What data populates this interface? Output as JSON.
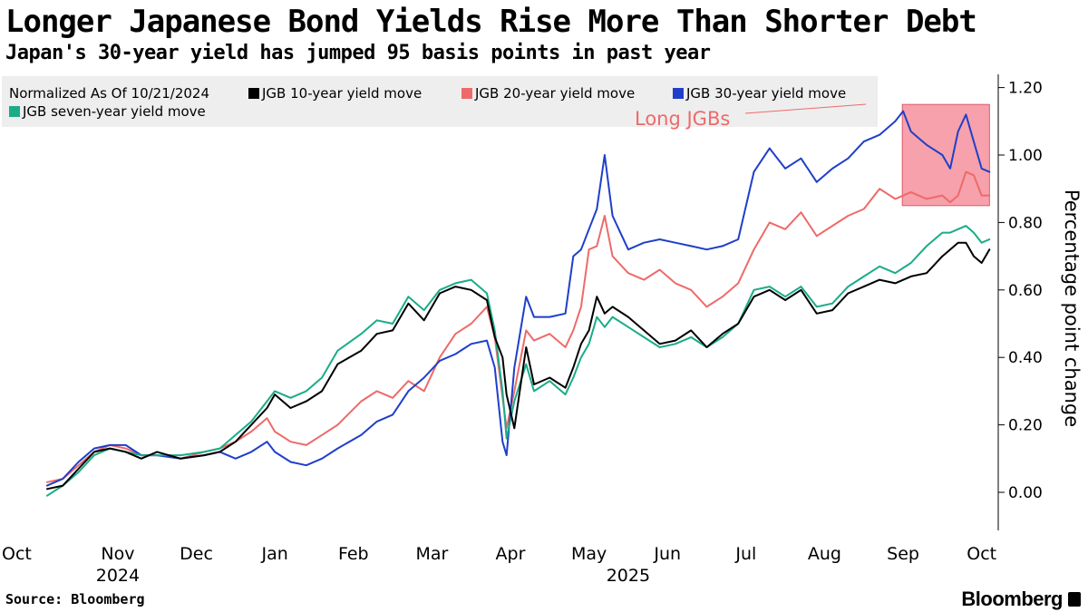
{
  "header": {
    "title": "Longer Japanese Bond Yields Rise More Than Shorter Debt",
    "subtitle": "Japan's 30-year yield has jumped 95 basis points in past year"
  },
  "footer": {
    "source": "Source: Bloomberg",
    "brand": "Bloomberg"
  },
  "colors": {
    "jgb10": "#000000",
    "jgb20": "#ee6a6a",
    "jgb30": "#1f3fc9",
    "jgb7": "#1aac88",
    "highlight": "#f4909c",
    "highlight_text": "#ee6a6a",
    "legend_bg": "#eeeeee"
  },
  "chart_data": {
    "type": "line",
    "title": "Longer Japanese Bond Yields Rise More Than Shorter Debt",
    "legend_title": "Normalized As Of 10/21/2024",
    "ylabel": "Percentage point change",
    "y_axis_position": "right",
    "ylim": [
      -0.1,
      1.23
    ],
    "yticks": [
      0.0,
      0.2,
      0.4,
      0.6,
      0.8,
      1.0,
      1.2
    ],
    "ytick_labels": [
      "0.00",
      "0.20",
      "0.40",
      "0.60",
      "0.80",
      "1.00",
      "1.20"
    ],
    "x_unit": "months since 2024-10-01",
    "xlim": [
      0,
      12.7
    ],
    "x_ticks": [
      {
        "label": "Oct",
        "x": 0.6
      },
      {
        "label": "Nov",
        "x": 1.5
      },
      {
        "label": "Dec",
        "x": 2.5
      },
      {
        "label": "Jan",
        "x": 3.5
      },
      {
        "label": "Feb",
        "x": 4.5
      },
      {
        "label": "Mar",
        "x": 5.5
      },
      {
        "label": "Apr",
        "x": 6.5
      },
      {
        "label": "May",
        "x": 7.5
      },
      {
        "label": "Jun",
        "x": 8.5
      },
      {
        "label": "Jul",
        "x": 9.5
      },
      {
        "label": "Aug",
        "x": 10.5
      },
      {
        "label": "Sep",
        "x": 11.5
      },
      {
        "label": "Oct",
        "x": 12.5
      }
    ],
    "year_labels": [
      {
        "label": "2024",
        "x": 1.5
      },
      {
        "label": "2025",
        "x": 8.0
      }
    ],
    "annotation": {
      "label": "Long JGBs",
      "box_x": [
        11.49,
        12.6
      ],
      "box_y": [
        0.85,
        1.15
      ]
    },
    "series": [
      {
        "name": "JGB 10-year yield move",
        "key": "jgb10",
        "points": [
          [
            0.6,
            0.01
          ],
          [
            0.8,
            0.02
          ],
          [
            1.0,
            0.07
          ],
          [
            1.2,
            0.12
          ],
          [
            1.4,
            0.13
          ],
          [
            1.6,
            0.12
          ],
          [
            1.8,
            0.1
          ],
          [
            2.0,
            0.12
          ],
          [
            2.3,
            0.1
          ],
          [
            2.6,
            0.11
          ],
          [
            2.8,
            0.12
          ],
          [
            3.0,
            0.15
          ],
          [
            3.2,
            0.2
          ],
          [
            3.4,
            0.25
          ],
          [
            3.5,
            0.29
          ],
          [
            3.7,
            0.25
          ],
          [
            3.9,
            0.27
          ],
          [
            4.1,
            0.3
          ],
          [
            4.3,
            0.38
          ],
          [
            4.6,
            0.42
          ],
          [
            4.8,
            0.47
          ],
          [
            5.0,
            0.48
          ],
          [
            5.2,
            0.56
          ],
          [
            5.4,
            0.51
          ],
          [
            5.6,
            0.59
          ],
          [
            5.8,
            0.61
          ],
          [
            6.0,
            0.6
          ],
          [
            6.2,
            0.57
          ],
          [
            6.3,
            0.46
          ],
          [
            6.4,
            0.4
          ],
          [
            6.45,
            0.29
          ],
          [
            6.55,
            0.19
          ],
          [
            6.7,
            0.43
          ],
          [
            6.8,
            0.32
          ],
          [
            7.0,
            0.34
          ],
          [
            7.2,
            0.31
          ],
          [
            7.3,
            0.37
          ],
          [
            7.4,
            0.44
          ],
          [
            7.5,
            0.48
          ],
          [
            7.6,
            0.58
          ],
          [
            7.7,
            0.53
          ],
          [
            7.8,
            0.55
          ],
          [
            8.0,
            0.52
          ],
          [
            8.2,
            0.48
          ],
          [
            8.4,
            0.44
          ],
          [
            8.6,
            0.45
          ],
          [
            8.8,
            0.48
          ],
          [
            9.0,
            0.43
          ],
          [
            9.2,
            0.47
          ],
          [
            9.4,
            0.5
          ],
          [
            9.6,
            0.58
          ],
          [
            9.8,
            0.6
          ],
          [
            10.0,
            0.57
          ],
          [
            10.2,
            0.6
          ],
          [
            10.4,
            0.53
          ],
          [
            10.6,
            0.54
          ],
          [
            10.8,
            0.59
          ],
          [
            11.0,
            0.61
          ],
          [
            11.2,
            0.63
          ],
          [
            11.4,
            0.62
          ],
          [
            11.6,
            0.64
          ],
          [
            11.8,
            0.65
          ],
          [
            12.0,
            0.7
          ],
          [
            12.1,
            0.72
          ],
          [
            12.2,
            0.74
          ],
          [
            12.3,
            0.74
          ],
          [
            12.4,
            0.7
          ],
          [
            12.5,
            0.68
          ],
          [
            12.6,
            0.72
          ]
        ]
      },
      {
        "name": "JGB 20-year yield move",
        "key": "jgb20",
        "points": [
          [
            0.6,
            0.03
          ],
          [
            0.8,
            0.04
          ],
          [
            1.0,
            0.08
          ],
          [
            1.2,
            0.12
          ],
          [
            1.4,
            0.14
          ],
          [
            1.6,
            0.13
          ],
          [
            1.8,
            0.11
          ],
          [
            2.0,
            0.11
          ],
          [
            2.3,
            0.1
          ],
          [
            2.6,
            0.12
          ],
          [
            2.8,
            0.13
          ],
          [
            3.0,
            0.15
          ],
          [
            3.2,
            0.18
          ],
          [
            3.4,
            0.22
          ],
          [
            3.5,
            0.18
          ],
          [
            3.7,
            0.15
          ],
          [
            3.9,
            0.14
          ],
          [
            4.1,
            0.17
          ],
          [
            4.3,
            0.2
          ],
          [
            4.6,
            0.27
          ],
          [
            4.8,
            0.3
          ],
          [
            5.0,
            0.28
          ],
          [
            5.2,
            0.33
          ],
          [
            5.4,
            0.3
          ],
          [
            5.6,
            0.4
          ],
          [
            5.8,
            0.47
          ],
          [
            6.0,
            0.5
          ],
          [
            6.2,
            0.55
          ],
          [
            6.3,
            0.46
          ],
          [
            6.4,
            0.28
          ],
          [
            6.45,
            0.19
          ],
          [
            6.55,
            0.3
          ],
          [
            6.7,
            0.48
          ],
          [
            6.8,
            0.45
          ],
          [
            7.0,
            0.47
          ],
          [
            7.2,
            0.43
          ],
          [
            7.3,
            0.48
          ],
          [
            7.4,
            0.55
          ],
          [
            7.5,
            0.72
          ],
          [
            7.6,
            0.73
          ],
          [
            7.7,
            0.82
          ],
          [
            7.8,
            0.7
          ],
          [
            8.0,
            0.65
          ],
          [
            8.2,
            0.63
          ],
          [
            8.4,
            0.66
          ],
          [
            8.6,
            0.62
          ],
          [
            8.8,
            0.6
          ],
          [
            9.0,
            0.55
          ],
          [
            9.2,
            0.58
          ],
          [
            9.4,
            0.62
          ],
          [
            9.6,
            0.72
          ],
          [
            9.8,
            0.8
          ],
          [
            10.0,
            0.78
          ],
          [
            10.2,
            0.83
          ],
          [
            10.4,
            0.76
          ],
          [
            10.6,
            0.79
          ],
          [
            10.8,
            0.82
          ],
          [
            11.0,
            0.84
          ],
          [
            11.2,
            0.9
          ],
          [
            11.4,
            0.87
          ],
          [
            11.6,
            0.89
          ],
          [
            11.8,
            0.87
          ],
          [
            12.0,
            0.88
          ],
          [
            12.1,
            0.86
          ],
          [
            12.2,
            0.88
          ],
          [
            12.3,
            0.95
          ],
          [
            12.4,
            0.94
          ],
          [
            12.5,
            0.88
          ],
          [
            12.6,
            0.88
          ]
        ]
      },
      {
        "name": "JGB 30-year yield move",
        "key": "jgb30",
        "points": [
          [
            0.6,
            0.02
          ],
          [
            0.8,
            0.04
          ],
          [
            1.0,
            0.09
          ],
          [
            1.2,
            0.13
          ],
          [
            1.4,
            0.14
          ],
          [
            1.6,
            0.14
          ],
          [
            1.8,
            0.11
          ],
          [
            2.0,
            0.11
          ],
          [
            2.3,
            0.1
          ],
          [
            2.6,
            0.11
          ],
          [
            2.8,
            0.12
          ],
          [
            3.0,
            0.1
          ],
          [
            3.2,
            0.12
          ],
          [
            3.4,
            0.15
          ],
          [
            3.5,
            0.12
          ],
          [
            3.7,
            0.09
          ],
          [
            3.9,
            0.08
          ],
          [
            4.1,
            0.1
          ],
          [
            4.3,
            0.13
          ],
          [
            4.6,
            0.17
          ],
          [
            4.8,
            0.21
          ],
          [
            5.0,
            0.23
          ],
          [
            5.2,
            0.3
          ],
          [
            5.4,
            0.34
          ],
          [
            5.6,
            0.39
          ],
          [
            5.8,
            0.41
          ],
          [
            6.0,
            0.44
          ],
          [
            6.2,
            0.45
          ],
          [
            6.3,
            0.37
          ],
          [
            6.4,
            0.15
          ],
          [
            6.45,
            0.11
          ],
          [
            6.55,
            0.37
          ],
          [
            6.7,
            0.58
          ],
          [
            6.8,
            0.52
          ],
          [
            7.0,
            0.52
          ],
          [
            7.2,
            0.53
          ],
          [
            7.3,
            0.7
          ],
          [
            7.4,
            0.72
          ],
          [
            7.5,
            0.78
          ],
          [
            7.6,
            0.84
          ],
          [
            7.7,
            1.0
          ],
          [
            7.8,
            0.82
          ],
          [
            8.0,
            0.72
          ],
          [
            8.2,
            0.74
          ],
          [
            8.4,
            0.75
          ],
          [
            8.6,
            0.74
          ],
          [
            8.8,
            0.73
          ],
          [
            9.0,
            0.72
          ],
          [
            9.2,
            0.73
          ],
          [
            9.4,
            0.75
          ],
          [
            9.6,
            0.95
          ],
          [
            9.8,
            1.02
          ],
          [
            10.0,
            0.96
          ],
          [
            10.2,
            0.99
          ],
          [
            10.4,
            0.92
          ],
          [
            10.6,
            0.96
          ],
          [
            10.8,
            0.99
          ],
          [
            11.0,
            1.04
          ],
          [
            11.2,
            1.06
          ],
          [
            11.4,
            1.1
          ],
          [
            11.5,
            1.13
          ],
          [
            11.6,
            1.07
          ],
          [
            11.8,
            1.03
          ],
          [
            12.0,
            1.0
          ],
          [
            12.1,
            0.96
          ],
          [
            12.2,
            1.07
          ],
          [
            12.3,
            1.12
          ],
          [
            12.4,
            1.04
          ],
          [
            12.5,
            0.96
          ],
          [
            12.6,
            0.95
          ]
        ]
      },
      {
        "name": "JGB seven-year yield move",
        "key": "jgb7",
        "points": [
          [
            0.6,
            -0.01
          ],
          [
            0.8,
            0.02
          ],
          [
            1.0,
            0.06
          ],
          [
            1.2,
            0.11
          ],
          [
            1.4,
            0.13
          ],
          [
            1.6,
            0.12
          ],
          [
            1.8,
            0.11
          ],
          [
            2.0,
            0.11
          ],
          [
            2.3,
            0.11
          ],
          [
            2.6,
            0.12
          ],
          [
            2.8,
            0.13
          ],
          [
            3.0,
            0.17
          ],
          [
            3.2,
            0.21
          ],
          [
            3.4,
            0.27
          ],
          [
            3.5,
            0.3
          ],
          [
            3.7,
            0.28
          ],
          [
            3.9,
            0.3
          ],
          [
            4.1,
            0.34
          ],
          [
            4.3,
            0.42
          ],
          [
            4.6,
            0.47
          ],
          [
            4.8,
            0.51
          ],
          [
            5.0,
            0.5
          ],
          [
            5.2,
            0.58
          ],
          [
            5.4,
            0.54
          ],
          [
            5.6,
            0.6
          ],
          [
            5.8,
            0.62
          ],
          [
            6.0,
            0.63
          ],
          [
            6.2,
            0.59
          ],
          [
            6.3,
            0.48
          ],
          [
            6.4,
            0.3
          ],
          [
            6.45,
            0.16
          ],
          [
            6.55,
            0.27
          ],
          [
            6.7,
            0.38
          ],
          [
            6.8,
            0.3
          ],
          [
            7.0,
            0.33
          ],
          [
            7.2,
            0.29
          ],
          [
            7.3,
            0.34
          ],
          [
            7.4,
            0.4
          ],
          [
            7.5,
            0.44
          ],
          [
            7.6,
            0.52
          ],
          [
            7.7,
            0.49
          ],
          [
            7.8,
            0.52
          ],
          [
            8.0,
            0.49
          ],
          [
            8.2,
            0.46
          ],
          [
            8.4,
            0.43
          ],
          [
            8.6,
            0.44
          ],
          [
            8.8,
            0.46
          ],
          [
            9.0,
            0.43
          ],
          [
            9.2,
            0.46
          ],
          [
            9.4,
            0.5
          ],
          [
            9.6,
            0.6
          ],
          [
            9.8,
            0.61
          ],
          [
            10.0,
            0.58
          ],
          [
            10.2,
            0.61
          ],
          [
            10.4,
            0.55
          ],
          [
            10.6,
            0.56
          ],
          [
            10.8,
            0.61
          ],
          [
            11.0,
            0.64
          ],
          [
            11.2,
            0.67
          ],
          [
            11.4,
            0.65
          ],
          [
            11.6,
            0.68
          ],
          [
            11.8,
            0.73
          ],
          [
            12.0,
            0.77
          ],
          [
            12.1,
            0.77
          ],
          [
            12.2,
            0.78
          ],
          [
            12.3,
            0.79
          ],
          [
            12.4,
            0.77
          ],
          [
            12.5,
            0.74
          ],
          [
            12.6,
            0.75
          ]
        ]
      }
    ]
  }
}
